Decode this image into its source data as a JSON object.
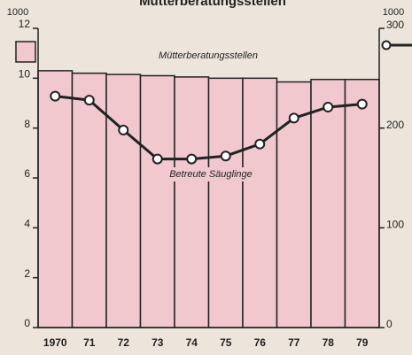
{
  "chart_data": {
    "type": "bar",
    "title": "Mütterberatungsstellen",
    "y_unit_label": "1000",
    "y2_unit_label": "1000",
    "categories": [
      "1970",
      "71",
      "72",
      "73",
      "74",
      "75",
      "76",
      "77",
      "78",
      "79"
    ],
    "series": [
      {
        "name": "Mütterberatungsstellen",
        "type": "bar",
        "color": "#f2c8cf",
        "axis": "y",
        "values": [
          10.3,
          10.2,
          10.15,
          10.1,
          10.05,
          10.0,
          10.0,
          9.85,
          9.95,
          9.95
        ]
      },
      {
        "name": "Betreute Säuglinge",
        "type": "line",
        "color": "#222222",
        "axis": "y2",
        "values": [
          232,
          228,
          198,
          169,
          169,
          172,
          184,
          210,
          221,
          224
        ]
      }
    ],
    "ylim": [
      0,
      12
    ],
    "yticks": [
      0,
      2,
      4,
      6,
      8,
      10,
      12
    ],
    "y2lim": [
      0,
      300
    ],
    "y2ticks": [
      0,
      100,
      200,
      300
    ]
  }
}
